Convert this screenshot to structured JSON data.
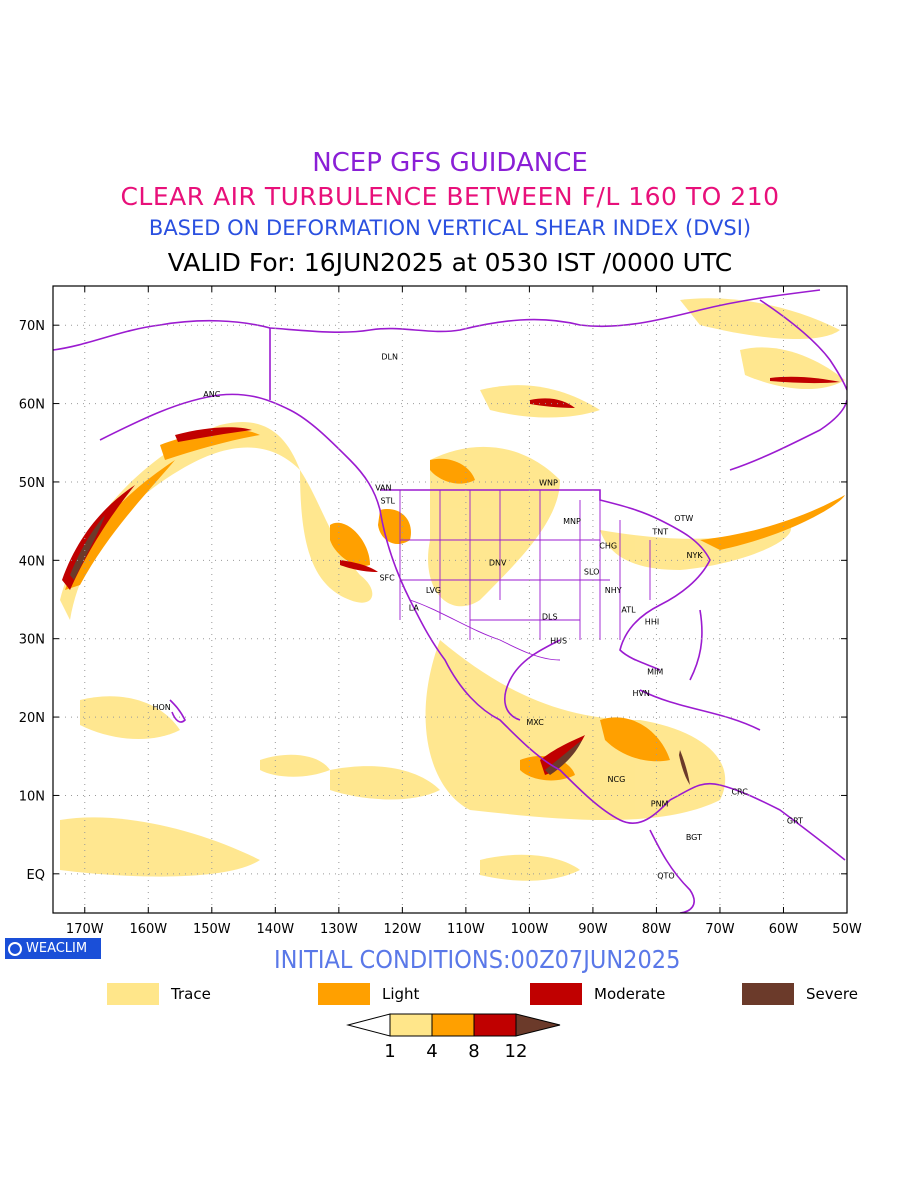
{
  "titles": {
    "line1": "NCEP GFS GUIDANCE",
    "line2": "CLEAR AIR TURBULENCE BETWEEN F/L 160 TO 210",
    "line3": "BASED ON DEFORMATION VERTICAL SHEAR INDEX (DVSI)",
    "line4": "VALID For: 16JUN2025 at 0530 IST /0000 UTC"
  },
  "axes": {
    "lat_labels": [
      "70N",
      "60N",
      "50N",
      "40N",
      "30N",
      "20N",
      "10N",
      "EQ"
    ],
    "lat_values": [
      70,
      60,
      50,
      40,
      30,
      20,
      10,
      0
    ],
    "lon_labels": [
      "170W",
      "160W",
      "150W",
      "140W",
      "130W",
      "120W",
      "110W",
      "100W",
      "90W",
      "80W",
      "70W",
      "60W",
      "50W"
    ],
    "lon_values": [
      -170,
      -160,
      -150,
      -140,
      -130,
      -120,
      -110,
      -100,
      -90,
      -80,
      -70,
      -60,
      -50
    ],
    "lon_range": [
      -175,
      -50
    ],
    "lat_range": [
      -5,
      75
    ]
  },
  "cities": [
    {
      "name": "ANC",
      "lon": -150,
      "lat": 61.2
    },
    {
      "name": "DLN",
      "lon": -122,
      "lat": 66
    },
    {
      "name": "VAN",
      "lon": -123,
      "lat": 49.3
    },
    {
      "name": "STL",
      "lon": -122.3,
      "lat": 47.6
    },
    {
      "name": "WNP",
      "lon": -97,
      "lat": 49.9
    },
    {
      "name": "OTW",
      "lon": -75.7,
      "lat": 45.4
    },
    {
      "name": "TNT",
      "lon": -79.4,
      "lat": 43.7
    },
    {
      "name": "MNP",
      "lon": -93.3,
      "lat": 45
    },
    {
      "name": "CHG",
      "lon": -87.6,
      "lat": 41.9
    },
    {
      "name": "NYK",
      "lon": -74,
      "lat": 40.7
    },
    {
      "name": "DNV",
      "lon": -105,
      "lat": 39.7
    },
    {
      "name": "SFC",
      "lon": -122.4,
      "lat": 37.8
    },
    {
      "name": "SLO",
      "lon": -90.2,
      "lat": 38.6
    },
    {
      "name": "LVG",
      "lon": -115.1,
      "lat": 36.2
    },
    {
      "name": "NHY",
      "lon": -86.8,
      "lat": 36.2
    },
    {
      "name": "LA",
      "lon": -118.2,
      "lat": 34
    },
    {
      "name": "ATL",
      "lon": -84.4,
      "lat": 33.7
    },
    {
      "name": "DLS",
      "lon": -96.8,
      "lat": 32.8
    },
    {
      "name": "HHI",
      "lon": -80.7,
      "lat": 32.2
    },
    {
      "name": "HUS",
      "lon": -95.4,
      "lat": 29.8
    },
    {
      "name": "MIM",
      "lon": -80.2,
      "lat": 25.8
    },
    {
      "name": "HVN",
      "lon": -82.4,
      "lat": 23.1
    },
    {
      "name": "HON",
      "lon": -157.9,
      "lat": 21.3
    },
    {
      "name": "MXC",
      "lon": -99.1,
      "lat": 19.4
    },
    {
      "name": "NCG",
      "lon": -86.3,
      "lat": 12.1
    },
    {
      "name": "CRC",
      "lon": -66.9,
      "lat": 10.5
    },
    {
      "name": "PNM",
      "lon": -79.5,
      "lat": 9
    },
    {
      "name": "GRT",
      "lon": -58.2,
      "lat": 6.8
    },
    {
      "name": "BGT",
      "lon": -74.1,
      "lat": 4.7
    },
    {
      "name": "QTO",
      "lon": -78.5,
      "lat": -0.2
    }
  ],
  "logo": "WEACLIM",
  "initial_conditions": "INITIAL CONDITIONS:00Z07JUN2025",
  "legend": [
    {
      "label": "Trace",
      "color": "#ffe68a"
    },
    {
      "label": "Light",
      "color": "#ffa000"
    },
    {
      "label": "Moderate",
      "color": "#c00000"
    },
    {
      "label": "Severe",
      "color": "#6b3a2a"
    }
  ],
  "colorbar": {
    "ticks": [
      "1",
      "4",
      "8",
      "12"
    ],
    "colors": [
      "#ffe68a",
      "#ffa000",
      "#c00000",
      "#6b3a2a"
    ]
  },
  "colors": {
    "coastline": "#9b1bd0",
    "trace": "#ffe68a",
    "light": "#ffa000",
    "moderate": "#c00000",
    "severe": "#6b3a2a"
  }
}
